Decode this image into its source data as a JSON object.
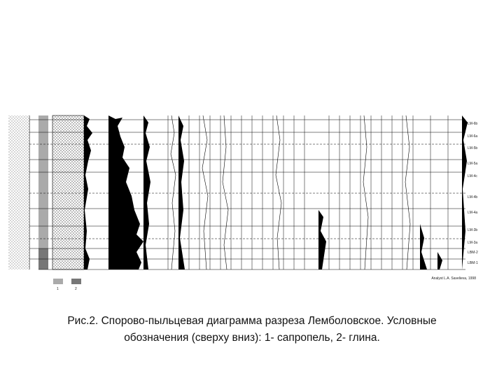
{
  "zones": [
    "LM-6b",
    "LM-6a",
    "LM-5b",
    "LM-5a",
    "LM-4c",
    "LM-4b",
    "LM-4a",
    "LM-3b",
    "LM-3a",
    "LBM-2",
    "LBM-1"
  ],
  "legend": [
    "1",
    "2"
  ],
  "credit": "Analyst L.A. Savelieva, 1998",
  "caption": {
    "line1": "Рис.2. Спорово-пыльцевая диаграмма разреза Лемболовское. Условные",
    "line2": "обозначения (сверху вниз): 1- сапропель, 2- глина."
  }
}
